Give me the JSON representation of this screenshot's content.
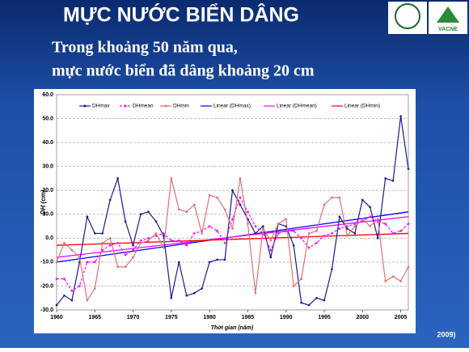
{
  "header": {
    "title": "MỰC NƯỚC BIỂN DÂNG",
    "logo_text": "VACNE"
  },
  "subtitle": [
    "Trong khoảng 50 năm qua,",
    "mực nước biển đã dâng khoảng 20 cm"
  ],
  "source": "2009)",
  "chart_data": {
    "type": "line",
    "xlabel": "Thời gian (năm)",
    "ylabel": "DH (cm)",
    "x": [
      1960,
      1961,
      1962,
      1963,
      1964,
      1965,
      1966,
      1967,
      1968,
      1969,
      1970,
      1971,
      1972,
      1973,
      1974,
      1975,
      1976,
      1977,
      1978,
      1979,
      1980,
      1981,
      1982,
      1983,
      1984,
      1985,
      1986,
      1987,
      1988,
      1989,
      1990,
      1991,
      1992,
      1993,
      1994,
      1995,
      1996,
      1997,
      1998,
      1999,
      2000,
      2001,
      2002,
      2003,
      2004,
      2005,
      2006
    ],
    "series": [
      {
        "name": "DHmax",
        "color": "#1a1a8c",
        "dash": false,
        "values": [
          -28,
          -24,
          -26,
          -10,
          9,
          2,
          2,
          16,
          25,
          7,
          -3,
          10,
          11,
          7,
          1,
          -25,
          -10,
          -24,
          -23,
          -21,
          -10,
          -9,
          -9,
          20,
          14,
          8,
          2,
          5,
          -8,
          6,
          5,
          -3,
          -27,
          -28,
          -25,
          -26,
          -13,
          9,
          4,
          2,
          16,
          13,
          0,
          25,
          24,
          51,
          29
        ]
      },
      {
        "name": "DHmean",
        "color": "#ff00ff",
        "dash": true,
        "values": [
          -17,
          -17,
          -22,
          -20,
          -10,
          -10,
          -5,
          -3,
          -2,
          -7,
          -5,
          -1,
          0,
          1,
          2,
          -1,
          -1,
          -3,
          2,
          3,
          5,
          3,
          -2,
          8,
          17,
          11,
          5,
          2,
          -5,
          2,
          3,
          3,
          0,
          -4,
          -2,
          1,
          2,
          4,
          5,
          6,
          7,
          9,
          7,
          6,
          2,
          3,
          6
        ]
      },
      {
        "name": "DHmin",
        "color": "#e07070",
        "dash": false,
        "values": [
          -10,
          -2,
          -5,
          -8,
          -26,
          -21,
          -2,
          0,
          -12,
          -12,
          -8,
          -2,
          -1,
          2,
          -4,
          25,
          12,
          11,
          14,
          2,
          18,
          17,
          12,
          4,
          25,
          6,
          -23,
          4,
          -1,
          6,
          8,
          -20,
          -17,
          2,
          3,
          14,
          17,
          17,
          1,
          5,
          8,
          5,
          8,
          -18,
          -16,
          -18,
          -12
        ]
      }
    ],
    "trendlines": [
      {
        "name": "Linear (DHmax)",
        "color": "#0000ff",
        "x": [
          1960,
          2006
        ],
        "values": [
          -10,
          11
        ]
      },
      {
        "name": "Linear (DHmean)",
        "color": "#ff00ff",
        "x": [
          1960,
          2006
        ],
        "values": [
          -8,
          9
        ]
      },
      {
        "name": "Linear (DHmin)",
        "color": "#ff0000",
        "x": [
          1960,
          2006
        ],
        "values": [
          -3,
          2
        ]
      }
    ],
    "xlim": [
      1960,
      2006
    ],
    "xticks": [
      1960,
      1965,
      1970,
      1975,
      1980,
      1985,
      1990,
      1995,
      2000,
      2005
    ],
    "ylim": [
      -30,
      60
    ],
    "yticks": [
      {
        "value": -30,
        "label": "-30.0"
      },
      {
        "value": -20,
        "label": "-20.0"
      },
      {
        "value": -10,
        "label": "-10.0"
      },
      {
        "value": 0,
        "label": "0.0"
      },
      {
        "value": 10,
        "label": "10.0"
      },
      {
        "value": 20,
        "label": "20.0"
      },
      {
        "value": 30,
        "label": "30.0"
      },
      {
        "value": 40,
        "label": "40.0"
      },
      {
        "value": 50,
        "label": "50.0"
      },
      {
        "value": 60,
        "label": "60.0"
      }
    ],
    "grid": true,
    "legend": "top"
  }
}
